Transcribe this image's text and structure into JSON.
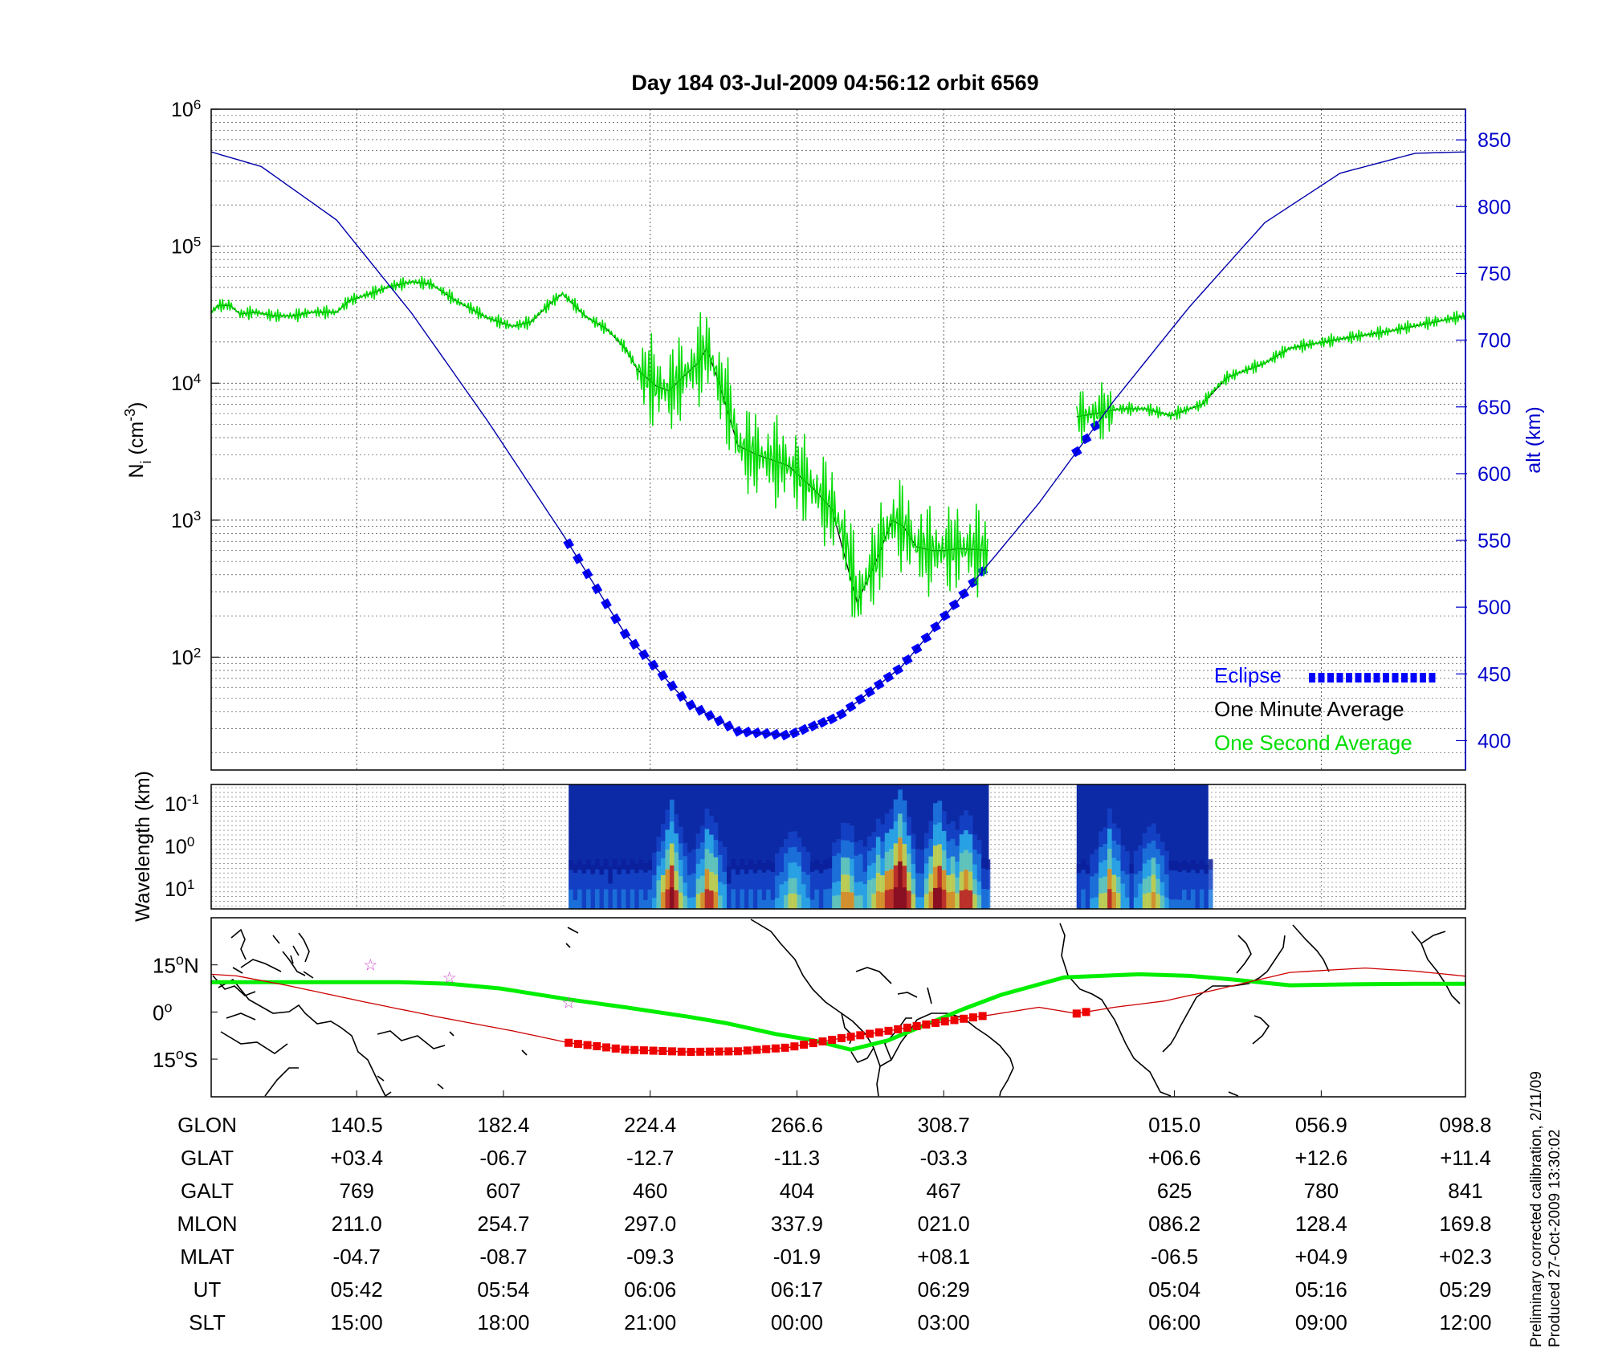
{
  "chart_data": [
    {
      "type": "line",
      "title": "Day 184  03-Jul-2009 04:56:12   orbit 6569",
      "ylabel_left": {
        "main": "N",
        "sub": "i",
        "unit_pre": " (cm",
        "unit_sup": "-3",
        "unit_post": ")"
      },
      "ylabel_right": "alt (km)",
      "y_left_scale": "log",
      "y_left_ticks": [
        {
          "base": "10",
          "exp": "6",
          "value": 1000000
        },
        {
          "base": "10",
          "exp": "5",
          "value": 100000
        },
        {
          "base": "10",
          "exp": "4",
          "value": 10000
        },
        {
          "base": "10",
          "exp": "3",
          "value": 1000
        },
        {
          "base": "10",
          "exp": "2",
          "value": 100
        }
      ],
      "y_left_range": [
        15,
        1000000
      ],
      "y_right_range": [
        378,
        873
      ],
      "y_right_ticks": [
        "850",
        "800",
        "750",
        "700",
        "650",
        "600",
        "550",
        "500",
        "450",
        "400"
      ],
      "grid": true,
      "legend_position": "bottom-right",
      "legend": [
        {
          "label": "Eclipse",
          "color": "#0000ff"
        },
        {
          "label": "One Minute Average",
          "color": "#000000"
        },
        {
          "label": "One Second Average",
          "color": "#00dd00"
        }
      ],
      "series": [
        {
          "name": "One Minute Average",
          "color": "#000000",
          "unit": "cm-3",
          "x": [
            0,
            0.6,
            1.5,
            2.3,
            3.5,
            5,
            6.5,
            8,
            10,
            11,
            13,
            14,
            16,
            17.5,
            19.5,
            22,
            24,
            25.5,
            27,
            28,
            29.5,
            30,
            31.5,
            33,
            34,
            35.5,
            36.5,
            38,
            38.8,
            39.5,
            40.5,
            42,
            43.5,
            46,
            48,
            49.5,
            51.5,
            53,
            54.3,
            55.2,
            56.2,
            57.5,
            58.5,
            59.5,
            61,
            62
          ],
          "y": [
            33000,
            37000,
            37000,
            32000,
            33000,
            31000,
            31000,
            33000,
            33000,
            40000,
            46000,
            50000,
            55000,
            53000,
            40000,
            30000,
            26000,
            28000,
            38000,
            45000,
            33000,
            30000,
            25000,
            18000,
            12500,
            9500,
            8800,
            12000,
            14000,
            18000,
            10000,
            3500,
            3000,
            2500,
            1700,
            1200,
            250,
            500,
            1000,
            900,
            640,
            600,
            600,
            620,
            610,
            600
          ]
        },
        {
          "name": "One Minute Average (post-gap)",
          "color": "#000000",
          "unit": "cm-3",
          "x": [
            69,
            70.5,
            72.5,
            74.5,
            76.5,
            79,
            81,
            84,
            86,
            90,
            94,
            100
          ],
          "y": [
            5700,
            6000,
            6500,
            6500,
            5800,
            7000,
            11000,
            14000,
            18000,
            21000,
            24000,
            31000
          ]
        },
        {
          "name": "One Second Average",
          "color": "#00dd00",
          "unit": "cm-3",
          "x": [
            0,
            0.6,
            1.5,
            2.3,
            3.5,
            5,
            6.5,
            8,
            10,
            11,
            13,
            14,
            16,
            17.5,
            19.5,
            22,
            24,
            25.5,
            27,
            28,
            29.5,
            30,
            31.5,
            33,
            34,
            35.5,
            36.5,
            38,
            38.8,
            39.5,
            40.5,
            42,
            43.5,
            46,
            48,
            49.5,
            51.5,
            53,
            54.3,
            55.2,
            56.2,
            57.5,
            58.5,
            59.5,
            61,
            62
          ],
          "y": [
            33000,
            37000,
            37000,
            32000,
            33000,
            31000,
            31000,
            33000,
            33000,
            40000,
            46000,
            50000,
            55000,
            53000,
            40000,
            30000,
            26000,
            28000,
            38000,
            45000,
            33000,
            30000,
            25000,
            18000,
            12500,
            9500,
            8800,
            12000,
            14000,
            18000,
            10000,
            3500,
            3000,
            2500,
            1700,
            1200,
            250,
            500,
            1000,
            900,
            640,
            600,
            600,
            620,
            610,
            600
          ]
        },
        {
          "name": "One Second Average (post-gap)",
          "color": "#00dd00",
          "unit": "cm-3",
          "x": [
            69,
            70.5,
            72.5,
            74.5,
            76.5,
            79,
            81,
            84,
            86,
            90,
            94,
            100
          ],
          "y": [
            5700,
            6000,
            6500,
            6500,
            5800,
            7000,
            11000,
            14000,
            18000,
            21000,
            24000,
            31000
          ]
        },
        {
          "name": "alt (km)",
          "color": "#0000aa",
          "axis": "right",
          "x": [
            0,
            4,
            10,
            16,
            22,
            28,
            33,
            38,
            42,
            46,
            50,
            55,
            60,
            66,
            72,
            78,
            84,
            90,
            96,
            100
          ],
          "y": [
            841,
            830,
            790,
            720,
            640,
            555,
            480,
            428,
            407,
            404,
            418,
            455,
            510,
            578,
            655,
            725,
            788,
            825,
            840,
            841
          ]
        },
        {
          "name": "Eclipse",
          "color": "#0000ff",
          "axis": "right",
          "x_ranges": [
            [
              28.5,
              62
            ],
            [
              69,
              70.5
            ]
          ]
        }
      ]
    },
    {
      "type": "heatmap",
      "ylabel": "Wavelength (km)",
      "y_ticks": [
        {
          "base": "10",
          "exp": "-1"
        },
        {
          "base": "10",
          "exp": "0"
        },
        {
          "base": "10",
          "exp": "1"
        }
      ],
      "x_ranges": [
        [
          28.5,
          62
        ],
        [
          69,
          79.5
        ]
      ]
    },
    {
      "type": "scatter",
      "xlabel": "",
      "y_ticks": [
        {
          "num": "15",
          "deg": "o",
          "dir": "N",
          "lat": 15
        },
        {
          "num": "0",
          "deg": "o",
          "dir": "",
          "lat": 0
        },
        {
          "num": "15",
          "deg": "o",
          "dir": "S",
          "lat": -15
        }
      ],
      "series": [
        {
          "name": "magnetic equator",
          "color": "#00ee00",
          "x": [
            0,
            8,
            15,
            19,
            23,
            28.5,
            33,
            38,
            41,
            45,
            48,
            51,
            54,
            57,
            60,
            63,
            68,
            74,
            78,
            81,
            86,
            91,
            96,
            100
          ],
          "y": [
            9.5,
            9.5,
            9.5,
            9.0,
            7.5,
            4,
            1.5,
            -1.5,
            -3.5,
            -7,
            -9,
            -12,
            -9,
            -4,
            1,
            5.5,
            11,
            12,
            11.5,
            10.5,
            8.5,
            8.8,
            9.0,
            9.0
          ]
        },
        {
          "name": "orbit track",
          "color": "#cc0000",
          "x": [
            0,
            2,
            6,
            12,
            18,
            24,
            28.5,
            33,
            38,
            42,
            46,
            50,
            54,
            58,
            62,
            66,
            69,
            72,
            76,
            80,
            86,
            92,
            96,
            100
          ],
          "y": [
            12,
            11.5,
            8.5,
            3.4,
            -1.5,
            -6,
            -9.8,
            -12,
            -12.7,
            -12.5,
            -11.3,
            -8.5,
            -6,
            -3.3,
            -1,
            1.5,
            -0.5,
            1.5,
            3.5,
            7,
            12.6,
            14,
            13,
            11.4
          ]
        },
        {
          "name": "eclipse track",
          "color": "#ee0000",
          "x_ranges": [
            [
              28.5,
              62
            ],
            [
              69,
              69.8
            ]
          ]
        },
        {
          "name": "stars",
          "color": "#cc44cc",
          "x": [
            12.7,
            19,
            28.5
          ],
          "y": [
            15,
            11,
            3
          ]
        }
      ]
    }
  ],
  "info_table": {
    "row_labels": [
      "GLON",
      "GLAT",
      "GALT",
      "MLON",
      "MLAT",
      "UT",
      "SLT"
    ],
    "columns": [
      {
        "glon": "140.5",
        "glat": "+03.4",
        "galt": "769",
        "mlon": "211.0",
        "mlat": "-04.7",
        "ut": "05:42",
        "slt": "15:00"
      },
      {
        "glon": "182.4",
        "glat": "-06.7",
        "galt": "607",
        "mlon": "254.7",
        "mlat": "-08.7",
        "ut": "05:54",
        "slt": "18:00"
      },
      {
        "glon": "224.4",
        "glat": "-12.7",
        "galt": "460",
        "mlon": "297.0",
        "mlat": "-09.3",
        "ut": "06:06",
        "slt": "21:00"
      },
      {
        "glon": "266.6",
        "glat": "-11.3",
        "galt": "404",
        "mlon": "337.9",
        "mlat": "-01.9",
        "ut": "06:17",
        "slt": "00:00"
      },
      {
        "glon": "308.7",
        "glat": "-03.3",
        "galt": "467",
        "mlon": "021.0",
        "mlat": "+08.1",
        "ut": "06:29",
        "slt": "03:00"
      },
      {
        "glon": "015.0",
        "glat": "+06.6",
        "galt": "625",
        "mlon": "086.2",
        "mlat": "-06.5",
        "ut": "05:04",
        "slt": "06:00"
      },
      {
        "glon": "056.9",
        "glat": "+12.6",
        "galt": "780",
        "mlon": "128.4",
        "mlat": "+04.9",
        "ut": "05:16",
        "slt": "09:00"
      },
      {
        "glon": "098.8",
        "glat": "+11.4",
        "galt": "841",
        "mlon": "169.8",
        "mlat": "+02.3",
        "ut": "05:29",
        "slt": "12:00"
      }
    ],
    "column_x": [
      11.6,
      23.3,
      35,
      46.7,
      58.4,
      76.8,
      88.5,
      100
    ]
  },
  "footer": {
    "line1": "Preliminary corrected calibration, 2/11/09",
    "line2": "Produced 27-Oct-2009 13:30:02"
  }
}
